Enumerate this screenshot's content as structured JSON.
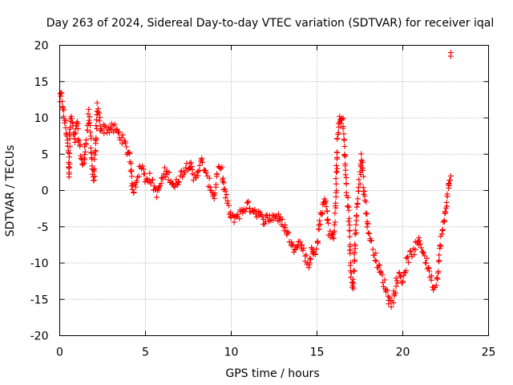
{
  "chart_data": {
    "type": "scatter",
    "title": "Day 263 of 2024, Sidereal Day-to-day VTEC variation (SDTVAR) for receiver iqal",
    "xlabel": "GPS time / hours",
    "ylabel": "SDTVAR / TECUs",
    "xlim": [
      0,
      25
    ],
    "ylim": [
      -20,
      20
    ],
    "xticks": [
      "0",
      "5",
      "10",
      "15",
      "20",
      "25"
    ],
    "yticks": [
      "-20",
      "-15",
      "-10",
      "-5",
      "0",
      "5",
      "10",
      "15",
      "20"
    ],
    "grid": true,
    "marker": "+",
    "color": "#ff0000",
    "series": [
      {
        "name": "SDTVAR",
        "trace": [
          [
            0.0,
            12.5
          ],
          [
            0.1,
            13.0
          ],
          [
            0.2,
            11.0
          ],
          [
            0.3,
            9.5
          ],
          [
            0.4,
            8.0
          ],
          [
            0.5,
            5.0
          ],
          [
            0.55,
            2.0
          ],
          [
            0.6,
            9.0
          ],
          [
            0.7,
            10.0
          ],
          [
            0.8,
            8.0
          ],
          [
            0.9,
            6.5
          ],
          [
            1.0,
            9.5
          ],
          [
            1.1,
            7.0
          ],
          [
            1.3,
            4.0
          ],
          [
            1.4,
            3.5
          ],
          [
            1.5,
            6.0
          ],
          [
            1.7,
            10.5
          ],
          [
            1.8,
            8.0
          ],
          [
            1.9,
            2.5
          ],
          [
            2.0,
            1.5
          ],
          [
            2.1,
            6.5
          ],
          [
            2.2,
            11.5
          ],
          [
            2.3,
            10.0
          ],
          [
            2.4,
            8.5
          ],
          [
            3.2,
            8.5
          ],
          [
            3.7,
            7.0
          ],
          [
            3.9,
            5.5
          ],
          [
            4.1,
            5.0
          ],
          [
            4.2,
            1.0
          ],
          [
            4.3,
            0.0
          ],
          [
            4.6,
            2.5
          ],
          [
            4.8,
            3.5
          ],
          [
            5.0,
            1.5
          ],
          [
            5.2,
            2.0
          ],
          [
            5.7,
            -0.5
          ],
          [
            5.9,
            1.0
          ],
          [
            6.1,
            2.5
          ],
          [
            6.4,
            2.0
          ],
          [
            6.7,
            0.5
          ],
          [
            7.0,
            2.0
          ],
          [
            7.3,
            3.0
          ],
          [
            7.6,
            4.0
          ],
          [
            7.8,
            1.5
          ],
          [
            8.0,
            2.5
          ],
          [
            8.3,
            4.0
          ],
          [
            8.6,
            1.5
          ],
          [
            8.8,
            0.5
          ],
          [
            9.0,
            -1.0
          ],
          [
            9.2,
            2.5
          ],
          [
            9.4,
            3.0
          ],
          [
            9.6,
            0.0
          ],
          [
            9.8,
            -2.0
          ],
          [
            10.0,
            -4.0
          ],
          [
            10.3,
            -3.5
          ],
          [
            10.6,
            -3.0
          ],
          [
            10.9,
            -2.0
          ],
          [
            11.2,
            -2.5
          ],
          [
            11.5,
            -3.0
          ],
          [
            11.8,
            -4.0
          ],
          [
            12.2,
            -3.8
          ],
          [
            12.6,
            -3.5
          ],
          [
            13.0,
            -4.5
          ],
          [
            13.3,
            -6.0
          ],
          [
            13.6,
            -8.0
          ],
          [
            13.9,
            -7.0
          ],
          [
            14.2,
            -8.0
          ],
          [
            14.5,
            -10.5
          ],
          [
            14.7,
            -8.0
          ],
          [
            14.8,
            -9.0
          ],
          [
            15.0,
            -7.5
          ],
          [
            15.2,
            -3.5
          ],
          [
            15.4,
            -2.0
          ],
          [
            15.5,
            -1.0
          ],
          [
            15.7,
            -5.5
          ],
          [
            15.9,
            -7.0
          ],
          [
            16.0,
            -5.0
          ],
          [
            16.1,
            -1.0
          ],
          [
            16.2,
            7.0
          ],
          [
            16.3,
            9.5
          ],
          [
            16.4,
            10.0
          ],
          [
            16.5,
            9.5
          ],
          [
            16.6,
            6.0
          ],
          [
            16.7,
            0.5
          ],
          [
            16.8,
            -1.5
          ],
          [
            16.9,
            -6.0
          ],
          [
            17.0,
            -12.0
          ],
          [
            17.1,
            -13.5
          ],
          [
            17.2,
            -8.0
          ],
          [
            17.3,
            -3.0
          ],
          [
            17.4,
            -0.5
          ],
          [
            17.5,
            2.0
          ],
          [
            17.6,
            5.0
          ],
          [
            17.7,
            1.0
          ],
          [
            17.8,
            -1.0
          ],
          [
            17.9,
            -4.0
          ],
          [
            18.0,
            -5.5
          ],
          [
            18.2,
            -7.5
          ],
          [
            18.5,
            -10.0
          ],
          [
            18.8,
            -12.0
          ],
          [
            19.0,
            -13.5
          ],
          [
            19.2,
            -15.0
          ],
          [
            19.4,
            -15.5
          ],
          [
            19.6,
            -13.0
          ],
          [
            19.8,
            -11.5
          ],
          [
            20.0,
            -12.5
          ],
          [
            20.2,
            -10.0
          ],
          [
            20.4,
            -9.0
          ],
          [
            20.6,
            -8.5
          ],
          [
            20.8,
            -7.5
          ],
          [
            21.0,
            -7.0
          ],
          [
            21.2,
            -8.5
          ],
          [
            21.4,
            -10.0
          ],
          [
            21.6,
            -11.5
          ],
          [
            21.8,
            -13.5
          ],
          [
            22.0,
            -12.0
          ],
          [
            22.2,
            -7.0
          ],
          [
            22.4,
            -4.5
          ],
          [
            22.5,
            -2.0
          ],
          [
            22.6,
            -1.0
          ],
          [
            22.7,
            1.0
          ],
          [
            22.8,
            2.0
          ]
        ],
        "outliers": [
          [
            22.8,
            19.0
          ]
        ]
      }
    ]
  }
}
